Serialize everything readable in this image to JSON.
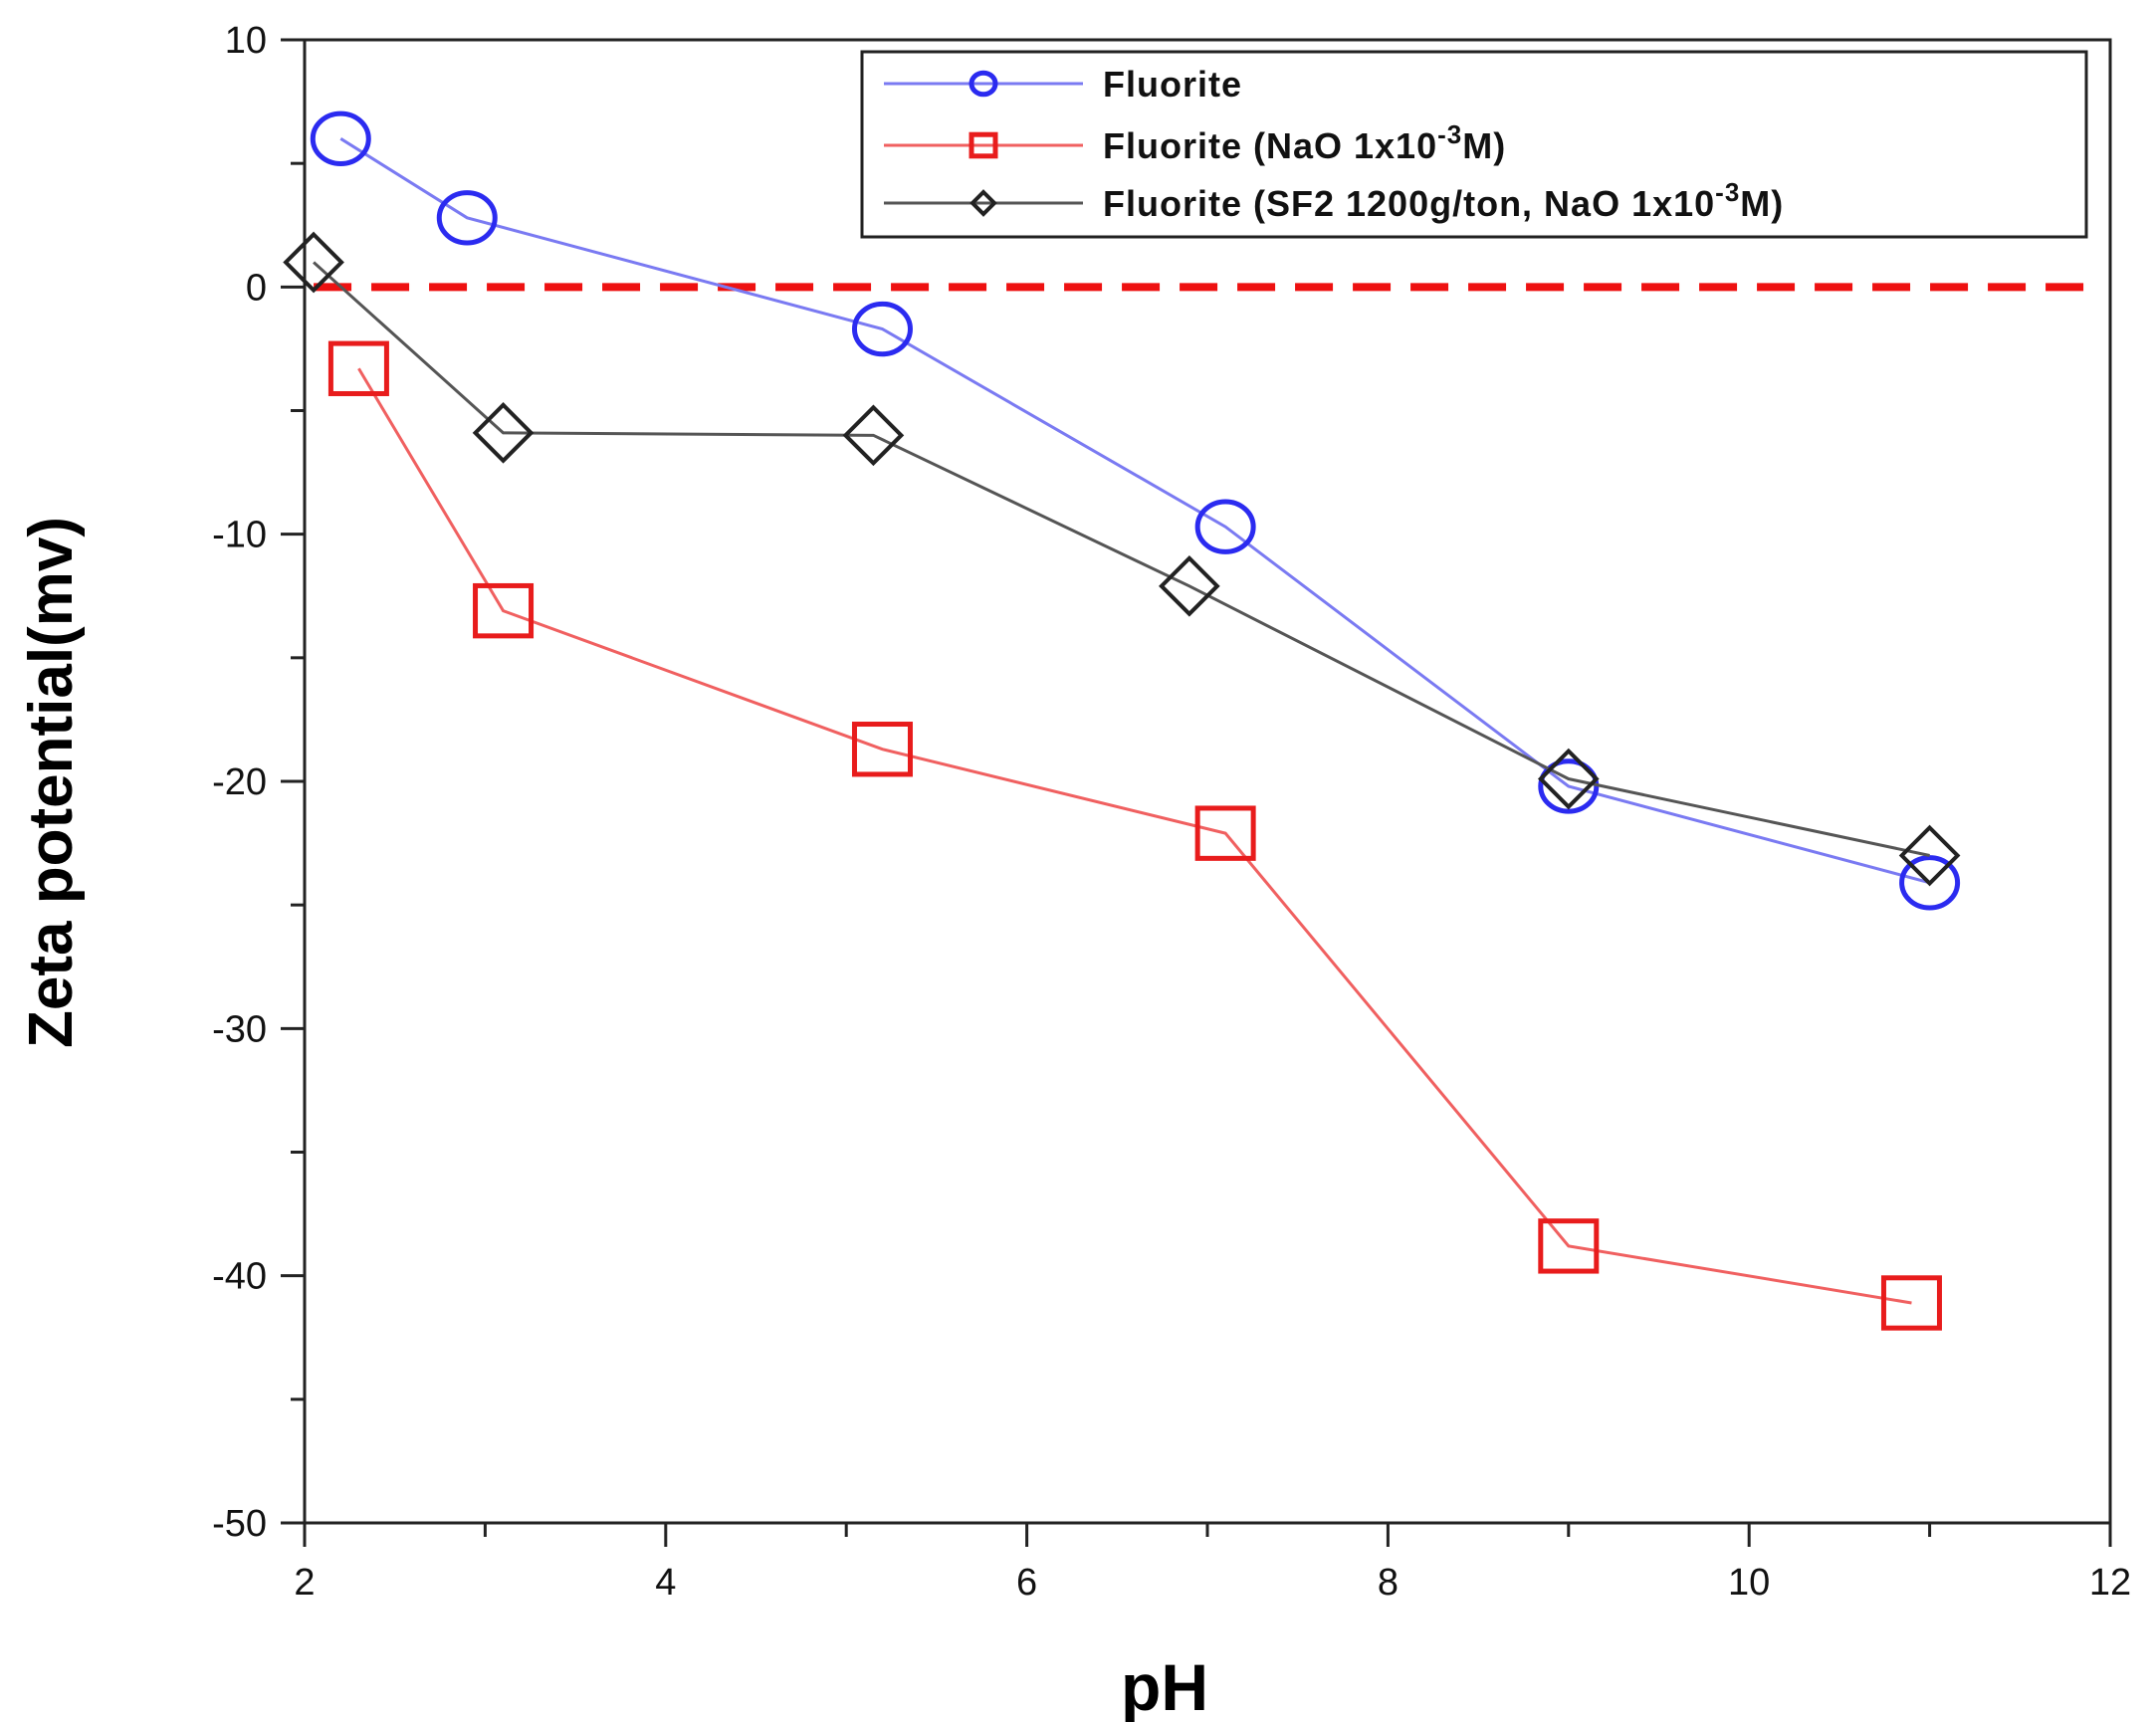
{
  "chart_data": {
    "type": "line",
    "title": "",
    "xlabel": "pH",
    "ylabel": "Zeta potential(mv)",
    "xlim": [
      2,
      12
    ],
    "ylim": [
      -50,
      10
    ],
    "xticks": [
      2,
      4,
      6,
      8,
      10,
      12
    ],
    "yticks": [
      10,
      0,
      -10,
      -20,
      -30,
      -40,
      -50
    ],
    "xtick_labels": [
      "2",
      "4",
      "6",
      "8",
      "10",
      "12"
    ],
    "ytick_labels": [
      "10",
      "0",
      "-10",
      "-20",
      "-30",
      "-40",
      "-50"
    ],
    "reference_line": {
      "y": 0,
      "style": "dashed",
      "color": "#ee1111"
    },
    "legend_position": "top-right",
    "series": [
      {
        "name": "Fluorite",
        "legend_parts": [
          "Fluorite"
        ],
        "marker": "circle",
        "color": "#2b2bf0",
        "line_color": "#7a7af2",
        "x": [
          2.2,
          2.9,
          5.2,
          7.1,
          9.0,
          11.0
        ],
        "y": [
          6.0,
          2.8,
          -1.7,
          -9.7,
          -20.2,
          -24.1
        ]
      },
      {
        "name": "Fluorite (NaO 1x10-3M)",
        "legend_parts": [
          "Fluorite (NaO 1x10",
          "-3",
          "M)"
        ],
        "marker": "square",
        "color": "#e81c1c",
        "line_color": "#f06060",
        "x": [
          2.3,
          3.1,
          5.2,
          7.1,
          9.0,
          10.9
        ],
        "y": [
          -3.3,
          -13.1,
          -18.7,
          -22.1,
          -38.8,
          -41.1
        ]
      },
      {
        "name": "Fluorite (SF2 1200g/ton, NaO 1x10-3M)",
        "legend_parts": [
          "Fluorite (SF2 1200g/ton, NaO 1x10",
          "-3",
          "M)"
        ],
        "marker": "diamond",
        "color": "#222222",
        "line_color": "#555555",
        "x": [
          2.05,
          3.1,
          5.15,
          6.9,
          9.0,
          11.0
        ],
        "y": [
          1.0,
          -5.9,
          -6.0,
          -12.1,
          -19.9,
          -23.0
        ]
      }
    ]
  }
}
